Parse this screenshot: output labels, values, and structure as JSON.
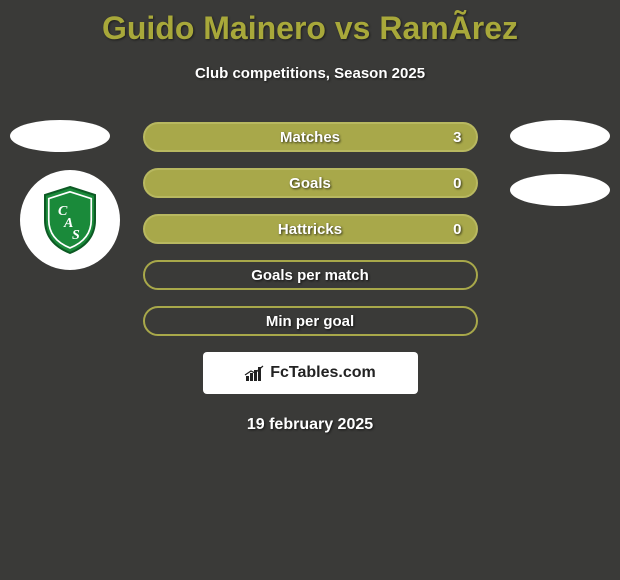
{
  "title": "Guido Mainero vs RamÃ­rez",
  "subtitle": "Club competitions, Season 2025",
  "date": "19 february 2025",
  "branding_text": "FcTables.com",
  "colors": {
    "title": "#a8a83a",
    "bg": "#3a3a38",
    "filled_bg": "#a8a84a",
    "filled_border": "#b8b860",
    "empty_border": "#a8a84a",
    "shield_green": "#1a8a3a"
  },
  "stats": [
    {
      "label": "Matches",
      "value": "3",
      "filled": true
    },
    {
      "label": "Goals",
      "value": "0",
      "filled": true
    },
    {
      "label": "Hattricks",
      "value": "0",
      "filled": true
    },
    {
      "label": "Goals per match",
      "value": "",
      "filled": false
    },
    {
      "label": "Min per goal",
      "value": "",
      "filled": false
    }
  ]
}
